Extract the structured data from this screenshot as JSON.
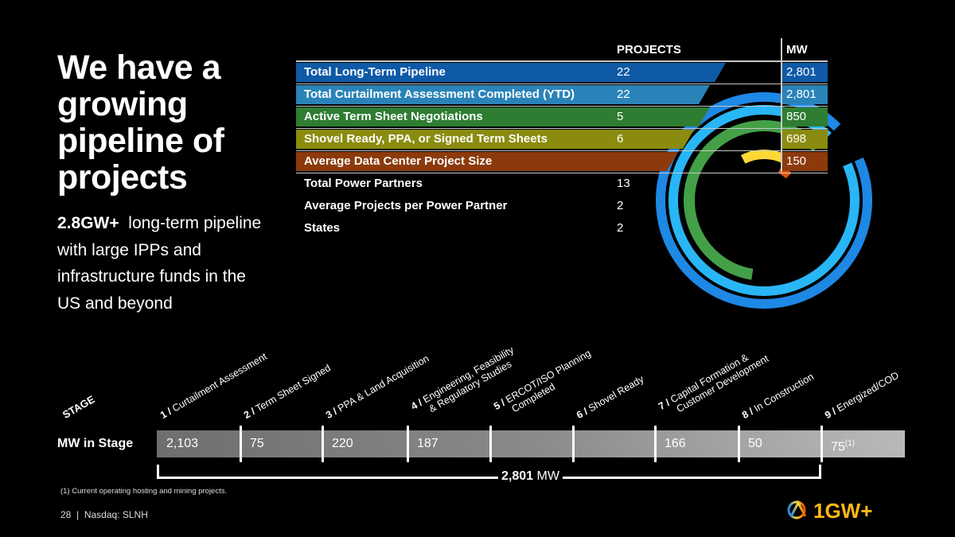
{
  "headline": "We have a growing pipeline of projects",
  "subtext": {
    "bold": "2.8GW+",
    "rest": "long-term pipeline with large IPPs and infrastructure funds in the US and beyond"
  },
  "table": {
    "col_projects": "PROJECTS",
    "col_mw": "MW",
    "rows": [
      {
        "label": "Total Long-Term Pipeline",
        "projects": "22",
        "mw": "2,801",
        "color": "#0e5aa7"
      },
      {
        "label": "Total Curtailment Assessment Completed (YTD)",
        "projects": "22",
        "mw": "2,801",
        "color": "#2a83b8"
      },
      {
        "label": "Active Term Sheet Negotiations",
        "projects": "5",
        "mw": "850",
        "color": "#2e7d32"
      },
      {
        "label": "Shovel Ready, PPA, or Signed Term Sheets",
        "projects": "6",
        "mw": "698",
        "color": "#8b8b0f"
      },
      {
        "label": "Average Data Center Project Size",
        "projects": "",
        "mw": "150",
        "color": "#8c3a0c"
      },
      {
        "label": "Total Power Partners",
        "projects": "13",
        "mw": ""
      },
      {
        "label": "Average Projects per Power Partner",
        "projects": "2",
        "mw": ""
      },
      {
        "label": "States",
        "projects": "2",
        "mw": ""
      }
    ]
  },
  "rings": {
    "colors": [
      "#1e88e5",
      "#29b6f6",
      "#43a047",
      "#fdd835",
      "#e65100"
    ],
    "fractions": [
      0.94,
      0.94,
      0.6,
      0.2,
      0.05
    ]
  },
  "stages": {
    "title": "STAGE",
    "row_label": "MW in Stage",
    "items": [
      {
        "num": "1 /",
        "name": "Curtailment Assessment",
        "mw": "2,103"
      },
      {
        "num": "2 /",
        "name": "Term Sheet Signed",
        "mw": "75"
      },
      {
        "num": "3 /",
        "name": "PPA & Land Acquisition",
        "mw": "220"
      },
      {
        "num": "4 /",
        "name": "Engineering, Feasibility",
        "name2": "& Regulatory Studies",
        "mw": "187"
      },
      {
        "num": "5 /",
        "name": "ERCOT/ISO Planning",
        "name2": "Completed",
        "mw": ""
      },
      {
        "num": "6 /",
        "name": "Shovel Ready",
        "mw": ""
      },
      {
        "num": "7 /",
        "name": "Capital Formation &",
        "name2": "Customer Development",
        "mw": "166"
      },
      {
        "num": "8 /",
        "name": "In Construction",
        "mw": "50"
      },
      {
        "num": "9 /",
        "name": "Energized/COD",
        "mw": "75",
        "sup": "(1)"
      }
    ]
  },
  "total": {
    "value": "2,801",
    "unit": "MW"
  },
  "footnote": "(1)  Current operating hosting and mining projects.",
  "footer": {
    "page": "28",
    "sep": "|",
    "ticker": "Nasdaq: SLNH"
  },
  "logo": {
    "text": "1GW+"
  }
}
